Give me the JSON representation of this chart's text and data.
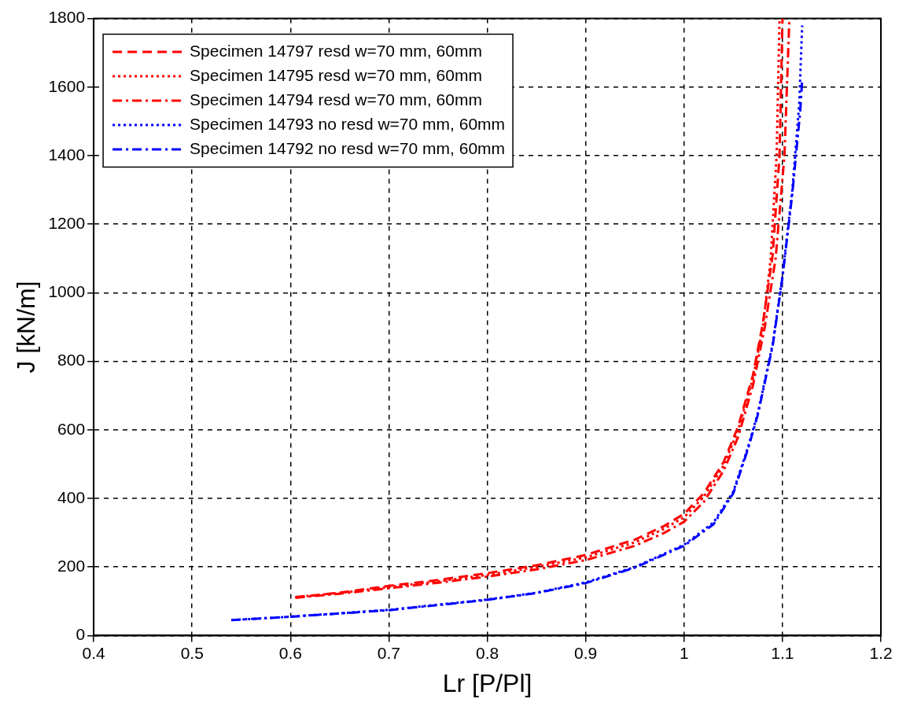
{
  "chart_data": {
    "type": "line",
    "xlabel": "Lr [P/Pl]",
    "ylabel": "J [kN/m]",
    "xlim": [
      0.4,
      1.2
    ],
    "xticks": [
      0.4,
      0.5,
      0.6,
      0.7,
      0.8,
      0.9,
      1,
      1.1,
      1.2
    ],
    "ylim": [
      0,
      1800
    ],
    "yticks": [
      0,
      200,
      400,
      600,
      800,
      1000,
      1200,
      1400,
      1600,
      1800
    ],
    "grid": true,
    "legend": "top left",
    "marker": "none",
    "series": [
      {
        "name": "Specimen 14797 resd w=70 mm, 60mm",
        "color": "#ff0000",
        "line_style": "dashed",
        "x": [
          0.605,
          0.65,
          0.7,
          0.75,
          0.8,
          0.85,
          0.9,
          0.95,
          0.98,
          1.0,
          1.02,
          1.04,
          1.055,
          1.07,
          1.08,
          1.09,
          1.097,
          1.1
        ],
        "values": [
          112,
          125,
          145,
          162,
          182,
          205,
          235,
          280,
          320,
          355,
          415,
          505,
          610,
          760,
          910,
          1110,
          1400,
          1800
        ]
      },
      {
        "name": "Specimen 14795 resd w=70 mm, 60mm",
        "color": "#ff0000",
        "line_style": "dotted",
        "x": [
          0.605,
          0.65,
          0.7,
          0.75,
          0.8,
          0.85,
          0.9,
          0.95,
          0.98,
          1.0,
          1.02,
          1.04,
          1.055,
          1.07,
          1.08,
          1.088,
          1.094,
          1.097
        ],
        "values": [
          112,
          124,
          142,
          158,
          177,
          200,
          228,
          272,
          312,
          345,
          405,
          495,
          600,
          750,
          900,
          1100,
          1400,
          1800
        ]
      },
      {
        "name": "Specimen 14794 resd w=70 mm, 60mm",
        "color": "#ff0000",
        "line_style": "dashdot",
        "x": [
          0.605,
          0.65,
          0.7,
          0.75,
          0.8,
          0.85,
          0.9,
          0.95,
          0.98,
          1.0,
          1.02,
          1.04,
          1.055,
          1.07,
          1.082,
          1.093,
          1.102,
          1.107
        ],
        "values": [
          110,
          122,
          138,
          154,
          172,
          193,
          220,
          262,
          300,
          332,
          390,
          480,
          580,
          730,
          900,
          1100,
          1400,
          1800
        ]
      },
      {
        "name": "Specimen 14793 no resd w=70 mm, 60mm",
        "color": "#0000ff",
        "line_style": "dotted",
        "x": [
          0.54,
          0.6,
          0.7,
          0.8,
          0.85,
          0.9,
          0.95,
          1.0,
          1.03,
          1.05,
          1.065,
          1.075,
          1.09,
          1.1,
          1.11,
          1.117,
          1.12
        ],
        "values": [
          45,
          55,
          75,
          105,
          125,
          155,
          200,
          265,
          330,
          420,
          550,
          650,
          850,
          1050,
          1300,
          1550,
          1780
        ]
      },
      {
        "name": "Specimen 14792 no resd w=70 mm, 60mm",
        "color": "#0000ff",
        "line_style": "dashdot",
        "x": [
          0.54,
          0.6,
          0.7,
          0.8,
          0.85,
          0.9,
          0.95,
          1.0,
          1.03,
          1.05,
          1.065,
          1.075,
          1.09,
          1.1,
          1.11,
          1.118,
          1.12
        ],
        "values": [
          45,
          55,
          74,
          104,
          124,
          153,
          198,
          262,
          325,
          415,
          545,
          645,
          845,
          1045,
          1290,
          1530,
          1620
        ]
      }
    ]
  }
}
